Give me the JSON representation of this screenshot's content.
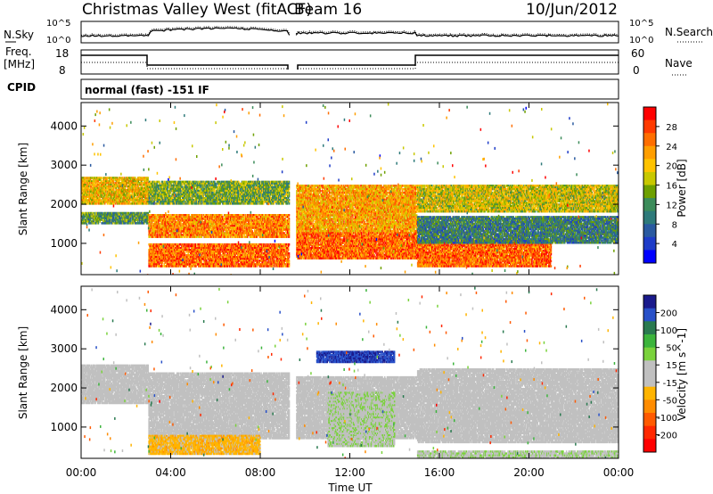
{
  "header": {
    "station": "Christmas Valley West (fitACF)",
    "beam": "Beam 16",
    "date": "10/Jun/2012"
  },
  "aux_panels": {
    "nsky_label": "N.Sky",
    "nsearch_label": "N.Search",
    "freq_label_1": "Freq.",
    "freq_label_2": "[MHz]",
    "nave_label": "Nave",
    "cpid_label": "CPID",
    "cpid_value": "normal (fast) -151 IF",
    "noise_ticks": [
      "10^5",
      "10^0"
    ],
    "noise_right_ticks": [
      "10^5",
      "10^0"
    ],
    "freq_ticks": [
      "18",
      "8"
    ],
    "nave_ticks": [
      "60",
      "0"
    ]
  },
  "colorbars": {
    "power": {
      "label": "Power [dB]",
      "ticks": [
        "28",
        "24",
        "20",
        "16",
        "12",
        "8",
        "4"
      ],
      "colors": [
        "#ff0000",
        "#ff3a00",
        "#ff6e00",
        "#ff9e00",
        "#ffc300",
        "#c8c800",
        "#6ea000",
        "#3c8c5a",
        "#2e7a7a",
        "#2a5aa0",
        "#1e3cc8",
        "#0000ff"
      ]
    },
    "velocity": {
      "label": "Velocity [m s^-1]",
      "ticks": [
        "200",
        "100",
        "50",
        "15",
        "-15",
        "-50",
        "-100",
        "-200"
      ],
      "colors": [
        "#1a1a8c",
        "#2850c8",
        "#2a7a50",
        "#3cb43c",
        "#7ad23c",
        "#c0c0c0",
        "#c0c0c0",
        "#ffb400",
        "#ff8c00",
        "#ff5a00",
        "#ff2800",
        "#ff0000"
      ]
    }
  },
  "time_axis": {
    "label": "Time UT",
    "ticks": [
      "00:00",
      "04:00",
      "08:00",
      "12:00",
      "16:00",
      "20:00",
      "00:00"
    ]
  },
  "chart_data": [
    {
      "type": "heatmap",
      "title": "Power",
      "xlabel": "Time UT",
      "ylabel": "Slant Range [km]",
      "xlim_hours": [
        0,
        24
      ],
      "ylim_km": [
        200,
        4600
      ],
      "yticks": [
        "1000",
        "2000",
        "3000",
        "4000"
      ],
      "colorbar_label": "Power [dB]",
      "colorbar_range_db": [
        0,
        32
      ],
      "data_gap_hours": [
        9.3,
        9.6
      ],
      "bands": [
        {
          "t": [
            0.0,
            3.0
          ],
          "r": [
            2000,
            2700
          ],
          "level_db": 20
        },
        {
          "t": [
            0.0,
            3.0
          ],
          "r": [
            1500,
            1800
          ],
          "level_db": 12
        },
        {
          "t": [
            3.0,
            9.3
          ],
          "r": [
            1150,
            1750
          ],
          "level_db": 24
        },
        {
          "t": [
            3.0,
            9.3
          ],
          "r": [
            400,
            1000
          ],
          "level_db": 26
        },
        {
          "t": [
            3.0,
            9.3
          ],
          "r": [
            2000,
            2600
          ],
          "level_db": 14
        },
        {
          "t": [
            9.6,
            15.0
          ],
          "r": [
            600,
            1300
          ],
          "level_db": 26
        },
        {
          "t": [
            9.6,
            15.0
          ],
          "r": [
            1300,
            2500
          ],
          "level_db": 22
        },
        {
          "t": [
            15.0,
            21.0
          ],
          "r": [
            400,
            1100
          ],
          "level_db": 26
        },
        {
          "t": [
            15.0,
            24.0
          ],
          "r": [
            1800,
            2500
          ],
          "level_db": 18
        },
        {
          "t": [
            15.0,
            24.0
          ],
          "r": [
            1000,
            1700
          ],
          "level_db": 10
        }
      ]
    },
    {
      "type": "heatmap",
      "title": "Velocity",
      "xlabel": "Time UT",
      "ylabel": "Slant Range [km]",
      "xlim_hours": [
        0,
        24
      ],
      "ylim_km": [
        200,
        4600
      ],
      "yticks": [
        "1000",
        "2000",
        "3000",
        "4000"
      ],
      "colorbar_label": "Velocity [m s^-1]",
      "colorbar_range_ms": [
        -250,
        250
      ],
      "data_gap_hours": [
        9.3,
        9.6
      ],
      "bands": [
        {
          "t": [
            0.0,
            3.0
          ],
          "r": [
            1600,
            2600
          ],
          "v": 0
        },
        {
          "t": [
            3.0,
            9.3
          ],
          "r": [
            700,
            2400
          ],
          "v": 0
        },
        {
          "t": [
            3.0,
            8.0
          ],
          "r": [
            300,
            800
          ],
          "v": -60
        },
        {
          "t": [
            9.6,
            15.0
          ],
          "r": [
            700,
            2300
          ],
          "v": 0
        },
        {
          "t": [
            10.5,
            14.0
          ],
          "r": [
            2650,
            2950
          ],
          "v": 200
        },
        {
          "t": [
            11.0,
            14.0
          ],
          "r": [
            500,
            1900
          ],
          "v": 30
        },
        {
          "t": [
            15.0,
            24.0
          ],
          "r": [
            600,
            2500
          ],
          "v": 0
        },
        {
          "t": [
            15.0,
            24.0
          ],
          "r": [
            200,
            400
          ],
          "v": 30
        }
      ]
    }
  ]
}
